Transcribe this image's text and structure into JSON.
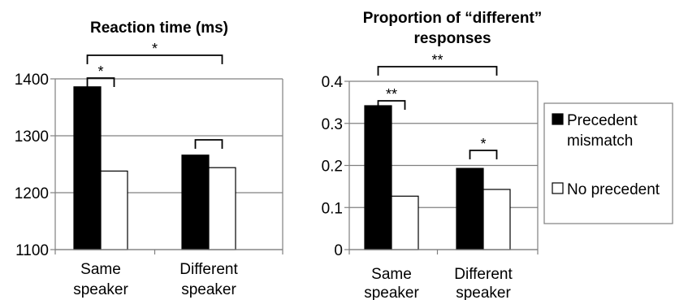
{
  "chart_data": [
    {
      "type": "bar",
      "title": "Reaction time (ms)",
      "categories": [
        [
          "Same",
          "speaker"
        ],
        [
          "Different",
          "speaker"
        ]
      ],
      "series": [
        {
          "name": "Precedent mismatch",
          "color": "#000000",
          "values": [
            1386,
            1266
          ]
        },
        {
          "name": "No precedent",
          "color": "#ffffff",
          "values": [
            1238,
            1244
          ]
        }
      ],
      "ylim": [
        1100,
        1400
      ],
      "yticks": [
        "1100",
        "1200",
        "1300",
        "1400"
      ],
      "grid": true,
      "significance": [
        {
          "label": "*",
          "span": "within-first"
        },
        {
          "label": "",
          "span": "within-second"
        },
        {
          "label": "*",
          "span": "between-groups"
        }
      ]
    },
    {
      "type": "bar",
      "title": [
        "Proportion of “different”",
        "responses"
      ],
      "categories": [
        [
          "Same",
          "speaker"
        ],
        [
          "Different",
          "speaker"
        ]
      ],
      "series": [
        {
          "name": "Precedent mismatch",
          "color": "#000000",
          "values": [
            0.342,
            0.193
          ]
        },
        {
          "name": "No precedent",
          "color": "#ffffff",
          "values": [
            0.127,
            0.143
          ]
        }
      ],
      "ylim": [
        0,
        0.4
      ],
      "yticks": [
        "0",
        "0.1",
        "0.2",
        "0.3",
        "0.4"
      ],
      "grid": true,
      "significance": [
        {
          "label": "**",
          "span": "within-first"
        },
        {
          "label": "*",
          "span": "within-second"
        },
        {
          "label": "**",
          "span": "between-groups"
        }
      ]
    }
  ],
  "legend": {
    "placement": "right",
    "items": [
      {
        "label": [
          "Precedent",
          "mismatch"
        ],
        "swatch": "#000000"
      },
      {
        "label": [
          "No precedent"
        ],
        "swatch": "#ffffff"
      }
    ]
  }
}
